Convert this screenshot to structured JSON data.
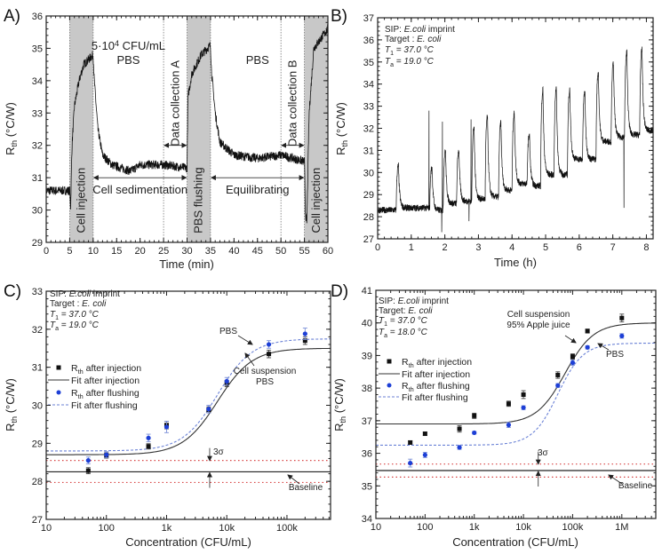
{
  "chart_data": [
    {
      "panel": "A)",
      "type": "line",
      "xscale": "linear",
      "xlabel": "Time (min)",
      "ylabel": [
        {
          "text": "R",
          "s": "n"
        },
        {
          "text": "th",
          "s": "sub"
        },
        {
          "text": " (°C/W)",
          "s": "n"
        }
      ],
      "xlim": [
        0,
        60
      ],
      "ylim": [
        29,
        36
      ],
      "xticks": {
        "values": [
          0,
          5,
          10,
          15,
          20,
          25,
          30,
          35,
          40,
          45,
          50,
          55,
          60
        ],
        "labels": [
          "0",
          "5",
          "10",
          "15",
          "20",
          "25",
          "30",
          "35",
          "40",
          "45",
          "50",
          "55",
          "60"
        ]
      },
      "yticks": {
        "values": [
          29,
          30,
          31,
          32,
          33,
          34,
          35,
          36
        ],
        "labels": [
          "29",
          "30",
          "31",
          "32",
          "33",
          "34",
          "35",
          "36"
        ]
      },
      "series": [
        {
          "name": "Rth",
          "x": [
            0,
            5,
            5.2,
            5.5,
            6,
            7,
            8,
            10,
            10.2,
            11,
            12,
            14,
            18,
            20,
            25,
            30,
            30.2,
            31,
            33,
            35,
            35.2,
            36,
            37,
            40,
            45,
            50,
            55,
            55.2,
            55.5,
            56,
            57,
            60
          ],
          "y": [
            30.6,
            30.6,
            30.1,
            32,
            33.2,
            34,
            34.5,
            34.8,
            34.1,
            32.5,
            31.7,
            31.4,
            31.2,
            31.4,
            31.4,
            31.3,
            33.5,
            34.2,
            34.8,
            35.1,
            34.3,
            33,
            32.1,
            31.7,
            31.6,
            31.7,
            31.5,
            30,
            29.5,
            33,
            35,
            35.6
          ]
        }
      ],
      "shaded_regions": [
        [
          5,
          10
        ],
        [
          30,
          35
        ],
        [
          55,
          60
        ]
      ],
      "dotted_lines": [
        5,
        10,
        25,
        30,
        35,
        50,
        55
      ],
      "region_labels": [
        "Cell injection",
        "PBS flushing",
        "Cell injection"
      ],
      "arrows": [
        {
          "label": "Cell sedimentation",
          "from": 10,
          "to": 30,
          "y": 31
        },
        {
          "label": "Equilibrating",
          "from": 35,
          "to": 55,
          "y": 31
        },
        {
          "label": "Data collection A",
          "from": 25,
          "to": 30,
          "y": 32
        },
        {
          "label": "Data collection B",
          "from": 50,
          "to": 55,
          "y": 32
        }
      ],
      "notes": [
        [
          {
            "text": "5·10",
            "s": "n"
          },
          {
            "text": "4",
            "s": "sup"
          },
          {
            "text": " CFU/mL",
            "s": "n"
          }
        ],
        [
          {
            "text": "PBS",
            "s": "n"
          }
        ],
        [
          {
            "text": "PBS",
            "s": "n"
          }
        ]
      ]
    },
    {
      "panel": "B)",
      "type": "line",
      "xscale": "linear",
      "xlabel": "Time (h)",
      "ylabel": [
        {
          "text": "R",
          "s": "n"
        },
        {
          "text": "th",
          "s": "sub"
        },
        {
          "text": " (°C/W)",
          "s": "n"
        }
      ],
      "xlim": [
        0,
        8.2
      ],
      "ylim": [
        27,
        37
      ],
      "xticks": {
        "values": [
          0,
          1,
          2,
          3,
          4,
          5,
          6,
          7,
          8
        ],
        "labels": [
          "0",
          "1",
          "2",
          "3",
          "4",
          "5",
          "6",
          "7",
          "8"
        ]
      },
      "yticks": {
        "values": [
          27,
          28,
          29,
          30,
          31,
          32,
          33,
          34,
          35,
          36,
          37
        ],
        "labels": [
          "27",
          "28",
          "29",
          "30",
          "31",
          "32",
          "33",
          "34",
          "35",
          "36",
          "37"
        ]
      },
      "initial_baseline": 28.3,
      "cycles": [
        {
          "t": 0.55,
          "peak": 30.4,
          "baseline_after": 28.4
        },
        {
          "t": 1.55,
          "peak": 30.3,
          "baseline_after": 28.3
        },
        {
          "t": 1.95,
          "peak": 31.1,
          "baseline_after": 28.6
        },
        {
          "t": 2.35,
          "peak": 31.1,
          "baseline_after": 28.7
        },
        {
          "t": 2.8,
          "peak": 32.2,
          "baseline_after": 28.8
        },
        {
          "t": 3.2,
          "peak": 32.7,
          "baseline_after": 28.9
        },
        {
          "t": 3.6,
          "peak": 32.4,
          "baseline_after": 29.2
        },
        {
          "t": 4.0,
          "peak": 32.8,
          "baseline_after": 29.5
        },
        {
          "t": 4.45,
          "peak": 31.8,
          "baseline_after": 29.4
        },
        {
          "t": 4.85,
          "peak": 33.9,
          "baseline_after": 29.9
        },
        {
          "t": 5.25,
          "peak": 34.0,
          "baseline_after": 29.9
        },
        {
          "t": 5.65,
          "peak": 33.9,
          "baseline_after": 30.6
        },
        {
          "t": 6.1,
          "peak": 33.8,
          "baseline_after": 30.6
        },
        {
          "t": 6.5,
          "peak": 34.7,
          "baseline_after": 31.4
        },
        {
          "t": 6.95,
          "peak": 35.1,
          "baseline_after": 31.6
        },
        {
          "t": 7.35,
          "peak": 35.6,
          "baseline_after": 31.7
        },
        {
          "t": 7.8,
          "peak": 35.7,
          "baseline_after": 31.9
        }
      ],
      "spikes": [
        {
          "t": 1.53,
          "y": 32.8
        },
        {
          "t": 1.93,
          "y": 32.3
        },
        {
          "t": 1.91,
          "y": 27.3
        },
        {
          "t": 2.78,
          "y": 32.4
        },
        {
          "t": 2.72,
          "y": 27.8
        },
        {
          "t": 7.33,
          "y": 28.4
        }
      ],
      "info": [
        [
          {
            "text": "SIP: ",
            "s": "n"
          },
          {
            "text": "E.coli",
            "s": "i"
          },
          {
            "text": " imprint",
            "s": "n"
          }
        ],
        [
          {
            "text": "Target : ",
            "s": "n"
          },
          {
            "text": "E. coli",
            "s": "i"
          }
        ],
        [
          {
            "text": "T",
            "s": "i"
          },
          {
            "text": "1",
            "s": "sub"
          },
          {
            "text": " = 37.0 °C",
            "s": "i"
          }
        ],
        [
          {
            "text": "T",
            "s": "i"
          },
          {
            "text": "a",
            "s": "sub"
          },
          {
            "text": " = 19.0 °C",
            "s": "i"
          }
        ]
      ]
    },
    {
      "panel": "C)",
      "type": "scatter",
      "xscale": "log",
      "xlabel": "Concentration (CFU/mL)",
      "ylabel": [
        {
          "text": "R",
          "s": "n"
        },
        {
          "text": "th",
          "s": "sub"
        },
        {
          "text": " (°C/W)",
          "s": "n"
        }
      ],
      "xlim": [
        10,
        530000
      ],
      "ylim": [
        27,
        33
      ],
      "xticks": {
        "values": [
          10,
          100,
          1000,
          10000,
          100000
        ],
        "labels": [
          "10",
          "100",
          "1k",
          "10k",
          "100k"
        ]
      },
      "yticks": {
        "values": [
          27,
          28,
          29,
          30,
          31,
          32,
          33
        ],
        "labels": [
          "27",
          "28",
          "29",
          "30",
          "31",
          "32",
          "33"
        ]
      },
      "x": [
        50,
        100,
        500,
        1000,
        5000,
        10000,
        50000,
        200000
      ],
      "series": [
        {
          "name": "after injection",
          "y": [
            28.28,
            28.68,
            28.92,
            29.48,
            29.88,
            30.57,
            31.35,
            31.7
          ],
          "err": [
            0.08,
            0.07,
            0.07,
            0.1,
            0.08,
            0.08,
            0.1,
            0.1
          ],
          "color": "#111111"
        },
        {
          "name": "after flushing",
          "y": [
            28.55,
            28.7,
            29.14,
            29.43,
            29.9,
            30.63,
            31.6,
            31.88
          ],
          "err": [
            0.09,
            0.08,
            0.1,
            0.15,
            0.1,
            0.1,
            0.1,
            0.15
          ],
          "color": "#1d3fd6"
        }
      ],
      "fits": [
        {
          "name": "Fit after injection",
          "bottom": 28.7,
          "top": 31.5,
          "ec50": 7000,
          "hill": 1.5,
          "color": "#333333"
        },
        {
          "name": "Fit after flushing",
          "bottom": 28.8,
          "top": 31.75,
          "ec50": 7000,
          "hill": 1.5,
          "color": "#6b82d6"
        }
      ],
      "baseline": 28.25,
      "sigma_band": [
        27.97,
        28.55
      ],
      "band_color": "#d84444",
      "legend": [
        [
          {
            "text": "R",
            "s": "n"
          },
          {
            "text": "th",
            "s": "sub"
          },
          {
            "text": " after injection",
            "s": "n"
          }
        ],
        [
          {
            "text": "Fit after injection",
            "s": "n"
          }
        ],
        [
          {
            "text": "R",
            "s": "n"
          },
          {
            "text": "th",
            "s": "sub"
          },
          {
            "text": " after flushing",
            "s": "n"
          }
        ],
        [
          {
            "text": "Fit after flushing",
            "s": "n"
          }
        ]
      ],
      "annotations": {
        "pbs": "PBS",
        "cell_1": "Cell suspension",
        "cell_2": "PBS",
        "sigma": "3σ",
        "baseline": "Baseline"
      },
      "info": [
        [
          {
            "text": "SIP: ",
            "s": "n"
          },
          {
            "text": "E.coli",
            "s": "i"
          },
          {
            "text": " imprint",
            "s": "n"
          }
        ],
        [
          {
            "text": "Target : ",
            "s": "n"
          },
          {
            "text": "E. coli",
            "s": "i"
          }
        ],
        [
          {
            "text": "T",
            "s": "i"
          },
          {
            "text": "1",
            "s": "sub"
          },
          {
            "text": " = 37.0 °C",
            "s": "i"
          }
        ],
        [
          {
            "text": "T",
            "s": "i"
          },
          {
            "text": "a",
            "s": "sub"
          },
          {
            "text": " = 19.0 °C",
            "s": "i"
          }
        ]
      ]
    },
    {
      "panel": "D)",
      "type": "scatter",
      "xscale": "log",
      "xlabel": "Concentration (CFU/mL)",
      "ylabel": [
        {
          "text": "R",
          "s": "n"
        },
        {
          "text": "th",
          "s": "sub"
        },
        {
          "text": " (°C/W)",
          "s": "n"
        }
      ],
      "xlim": [
        10,
        4900000
      ],
      "ylim": [
        34,
        41
      ],
      "xticks": {
        "values": [
          10,
          100,
          1000,
          10000,
          100000,
          1000000
        ],
        "labels": [
          "10",
          "100",
          "1k",
          "10k",
          "100k",
          "1M"
        ]
      },
      "yticks": {
        "values": [
          34,
          35,
          36,
          37,
          38,
          39,
          40,
          41
        ],
        "labels": [
          "34",
          "35",
          "36",
          "37",
          "38",
          "39",
          "40",
          "41"
        ]
      },
      "x": [
        50,
        100,
        500,
        1000,
        5000,
        10000,
        50000,
        100000,
        200000,
        1000000
      ],
      "series": [
        {
          "name": "after injection",
          "y": [
            36.33,
            36.6,
            36.75,
            37.15,
            37.52,
            37.8,
            38.4,
            38.97,
            39.75,
            40.15
          ],
          "err": [
            0.05,
            0.05,
            0.1,
            0.08,
            0.08,
            0.12,
            0.1,
            0.08,
            0.06,
            0.12
          ],
          "color": "#111111"
        },
        {
          "name": "after flushing",
          "y": [
            35.7,
            35.95,
            36.18,
            36.63,
            36.87,
            37.4,
            38.08,
            38.78,
            39.25,
            39.6
          ],
          "err": [
            0.12,
            0.08,
            0.06,
            0.04,
            0.08,
            0.06,
            0.06,
            0.08,
            0.05,
            0.07
          ],
          "color": "#1d3fd6"
        }
      ],
      "fits": [
        {
          "name": "Fit after injection",
          "bottom": 36.9,
          "top": 40.0,
          "ec50": 70000,
          "hill": 1.5,
          "color": "#333333"
        },
        {
          "name": "Fit after flushing",
          "bottom": 36.25,
          "top": 39.38,
          "ec50": 50000,
          "hill": 1.7,
          "color": "#6b82d6"
        }
      ],
      "baseline": 35.47,
      "sigma_band": [
        35.27,
        35.67
      ],
      "band_color": "#d84444",
      "legend": [
        [
          {
            "text": "R",
            "s": "n"
          },
          {
            "text": "th",
            "s": "sub"
          },
          {
            "text": " after injection",
            "s": "n"
          }
        ],
        [
          {
            "text": "Fit after injection",
            "s": "n"
          }
        ],
        [
          {
            "text": "R",
            "s": "n"
          },
          {
            "text": "th",
            "s": "sub"
          },
          {
            "text": " after flushing",
            "s": "n"
          }
        ],
        [
          {
            "text": "Fit after flushing",
            "s": "n"
          }
        ]
      ],
      "annotations": {
        "cell_1": "Cell suspension",
        "cell_2": "95% Apple juice",
        "pbs": "PBS",
        "sigma": "3σ",
        "baseline": "Baseline"
      },
      "info": [
        [
          {
            "text": "SIP: ",
            "s": "n"
          },
          {
            "text": "E.coli",
            "s": "i"
          },
          {
            "text": " imprint",
            "s": "n"
          }
        ],
        [
          {
            "text": "Target: ",
            "s": "n"
          },
          {
            "text": "E. coli",
            "s": "i"
          }
        ],
        [
          {
            "text": "T",
            "s": "i"
          },
          {
            "text": "1",
            "s": "sub"
          },
          {
            "text": " = 37.0 °C",
            "s": "i"
          }
        ],
        [
          {
            "text": "T",
            "s": "i"
          },
          {
            "text": "a",
            "s": "sub"
          },
          {
            "text": " = 18.0 °C",
            "s": "i"
          }
        ]
      ]
    }
  ]
}
